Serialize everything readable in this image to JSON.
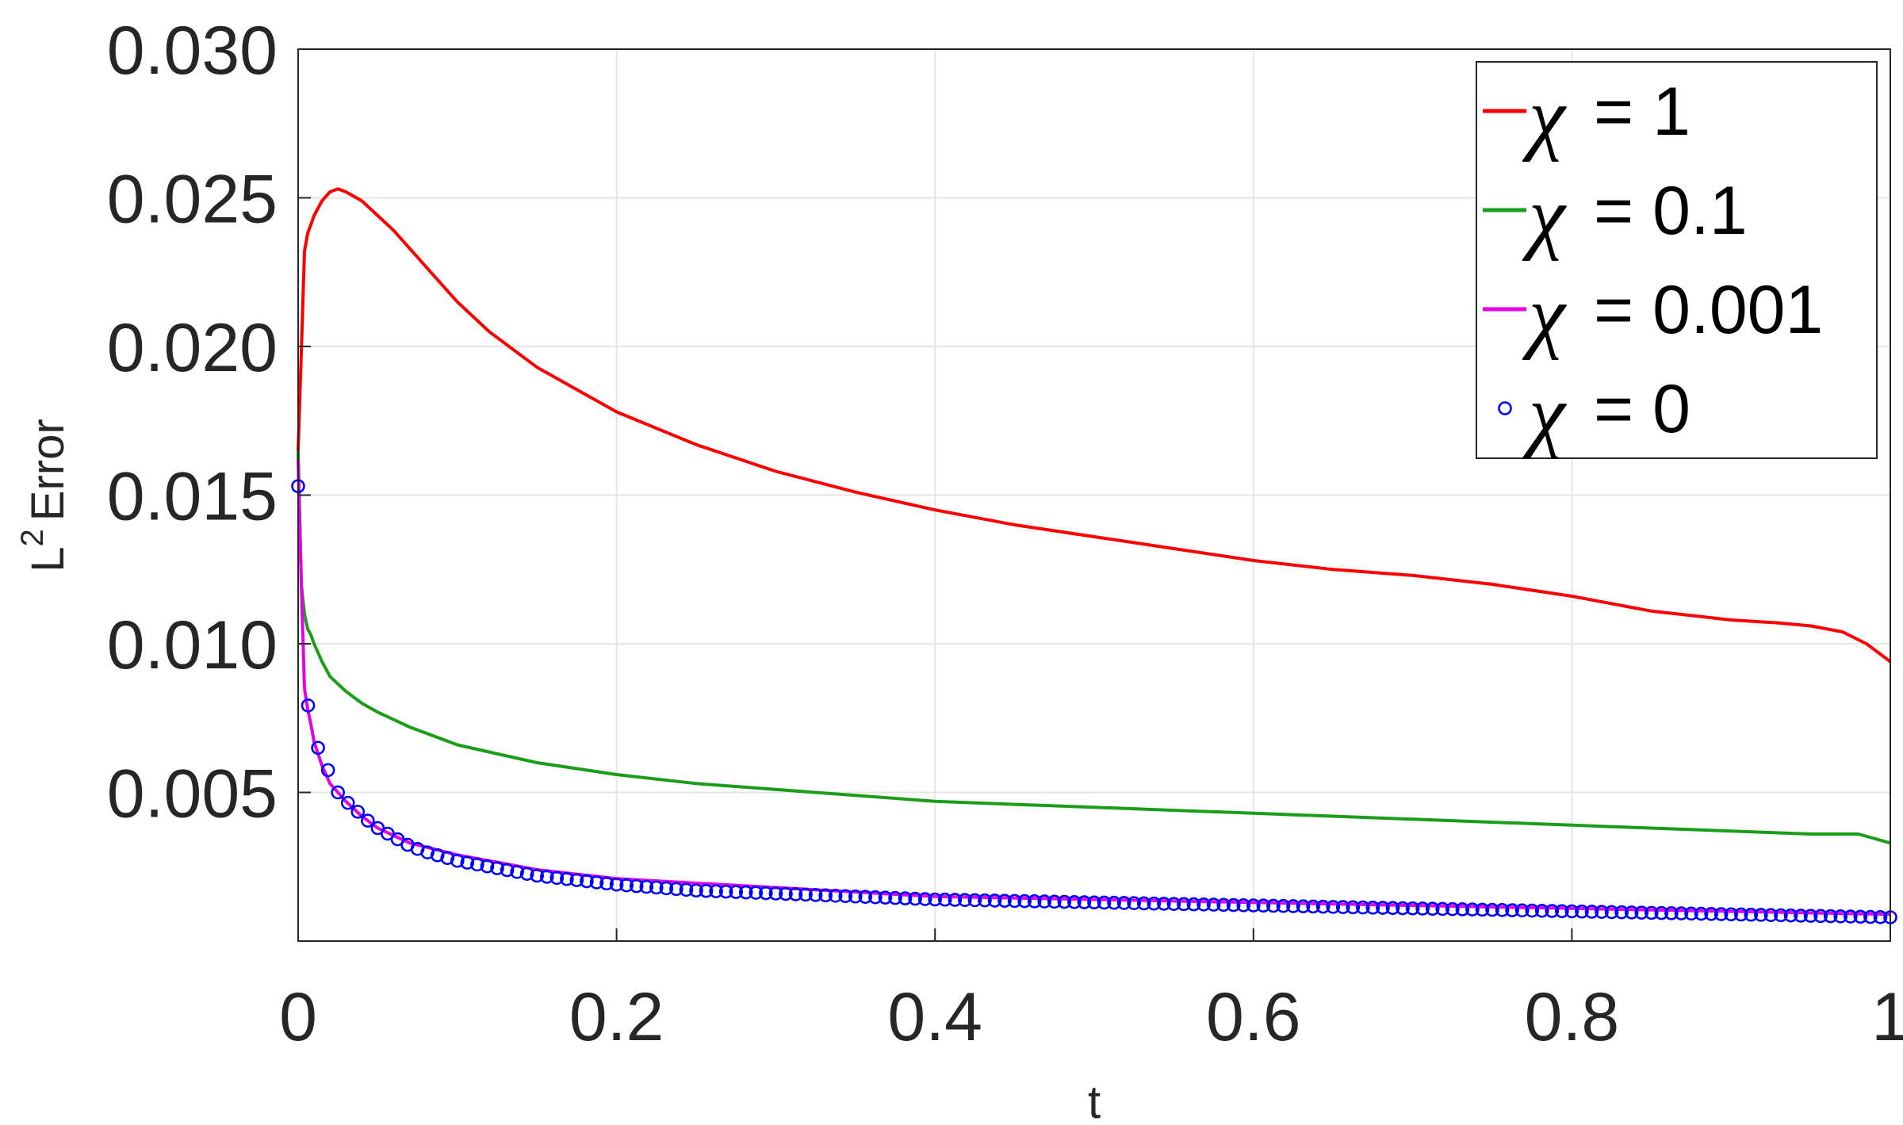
{
  "chart_data": {
    "type": "line",
    "title": "",
    "xlabel": "t",
    "ylabel_base": "L",
    "ylabel_sup": "2",
    "ylabel_rest": "Error",
    "xlim": [
      0,
      1
    ],
    "ylim": [
      0,
      0.03
    ],
    "xticks": [
      0,
      0.2,
      0.4,
      0.6,
      0.8,
      1
    ],
    "xtick_labels": [
      "0",
      "0.2",
      "0.4",
      "0.6",
      "0.8",
      "1"
    ],
    "yticks": [
      0.005,
      0.01,
      0.015,
      0.02,
      0.025,
      0.03
    ],
    "ytick_labels": [
      "0.005",
      "0.010",
      "0.015",
      "0.020",
      "0.025",
      "0.030"
    ],
    "grid": true,
    "legend_position": "top-right",
    "legend_symbol": "χ",
    "series": [
      {
        "name": "= 1",
        "color": "#ff0000",
        "style": "line",
        "x": [
          0,
          0.002,
          0.004,
          0.006,
          0.008,
          0.01,
          0.015,
          0.02,
          0.025,
          0.03,
          0.04,
          0.05,
          0.06,
          0.08,
          0.1,
          0.12,
          0.15,
          0.2,
          0.25,
          0.3,
          0.35,
          0.4,
          0.45,
          0.5,
          0.55,
          0.6,
          0.65,
          0.7,
          0.75,
          0.8,
          0.85,
          0.9,
          0.93,
          0.95,
          0.97,
          0.985,
          1.0
        ],
        "y": [
          0.0165,
          0.0198,
          0.0232,
          0.0238,
          0.0241,
          0.0244,
          0.0249,
          0.0252,
          0.0253,
          0.0252,
          0.0249,
          0.0244,
          0.0239,
          0.0227,
          0.0215,
          0.0205,
          0.0193,
          0.0178,
          0.0167,
          0.0158,
          0.0151,
          0.0145,
          0.014,
          0.0136,
          0.0132,
          0.0128,
          0.0125,
          0.0123,
          0.012,
          0.0116,
          0.0111,
          0.0108,
          0.0107,
          0.0106,
          0.0104,
          0.01,
          0.0094
        ]
      },
      {
        "name": "= 0.1",
        "color": "#1a9e1a",
        "style": "line",
        "x": [
          0,
          0.002,
          0.004,
          0.006,
          0.008,
          0.01,
          0.015,
          0.02,
          0.03,
          0.04,
          0.05,
          0.07,
          0.1,
          0.15,
          0.2,
          0.25,
          0.3,
          0.35,
          0.4,
          0.5,
          0.6,
          0.7,
          0.8,
          0.9,
          0.95,
          0.98,
          1.0
        ],
        "y": [
          0.0165,
          0.012,
          0.011,
          0.0105,
          0.0103,
          0.01,
          0.0094,
          0.0089,
          0.0084,
          0.008,
          0.0077,
          0.0072,
          0.0066,
          0.006,
          0.0056,
          0.0053,
          0.0051,
          0.0049,
          0.0047,
          0.0045,
          0.0043,
          0.0041,
          0.0039,
          0.0037,
          0.0036,
          0.0036,
          0.0033
        ]
      },
      {
        "name": "= 0.001",
        "color": "#e600e6",
        "style": "line",
        "x": [
          0,
          0.002,
          0.004,
          0.006,
          0.008,
          0.01,
          0.015,
          0.02,
          0.03,
          0.04,
          0.05,
          0.07,
          0.1,
          0.15,
          0.2,
          0.3,
          0.4,
          0.5,
          0.6,
          0.7,
          0.8,
          0.9,
          1.0
        ],
        "y": [
          0.0162,
          0.012,
          0.0085,
          0.0078,
          0.0073,
          0.0067,
          0.0059,
          0.0053,
          0.0047,
          0.0042,
          0.0038,
          0.0033,
          0.0029,
          0.0024,
          0.0021,
          0.0018,
          0.0015,
          0.0014,
          0.0013,
          0.0012,
          0.0011,
          0.001,
          0.0009
        ]
      },
      {
        "name": "= 0",
        "color": "#0000ff",
        "style": "markers",
        "marker": "circle",
        "marker_spacing": 0.00625,
        "x": [
          0,
          0.005,
          0.01,
          0.015,
          0.02,
          0.025,
          0.03,
          0.035,
          0.04,
          0.05,
          0.06,
          0.07,
          0.08,
          0.1,
          0.12,
          0.15,
          0.2,
          0.25,
          0.3,
          0.4,
          0.5,
          0.6,
          0.7,
          0.8,
          0.9,
          1.0
        ],
        "y": [
          0.0153,
          0.0083,
          0.0068,
          0.0062,
          0.0056,
          0.005,
          0.0047,
          0.0045,
          0.0042,
          0.0038,
          0.0035,
          0.0032,
          0.003,
          0.0027,
          0.0025,
          0.0022,
          0.0019,
          0.0017,
          0.0016,
          0.0014,
          0.0013,
          0.0012,
          0.0011,
          0.001,
          0.0009,
          0.0008
        ]
      }
    ]
  }
}
